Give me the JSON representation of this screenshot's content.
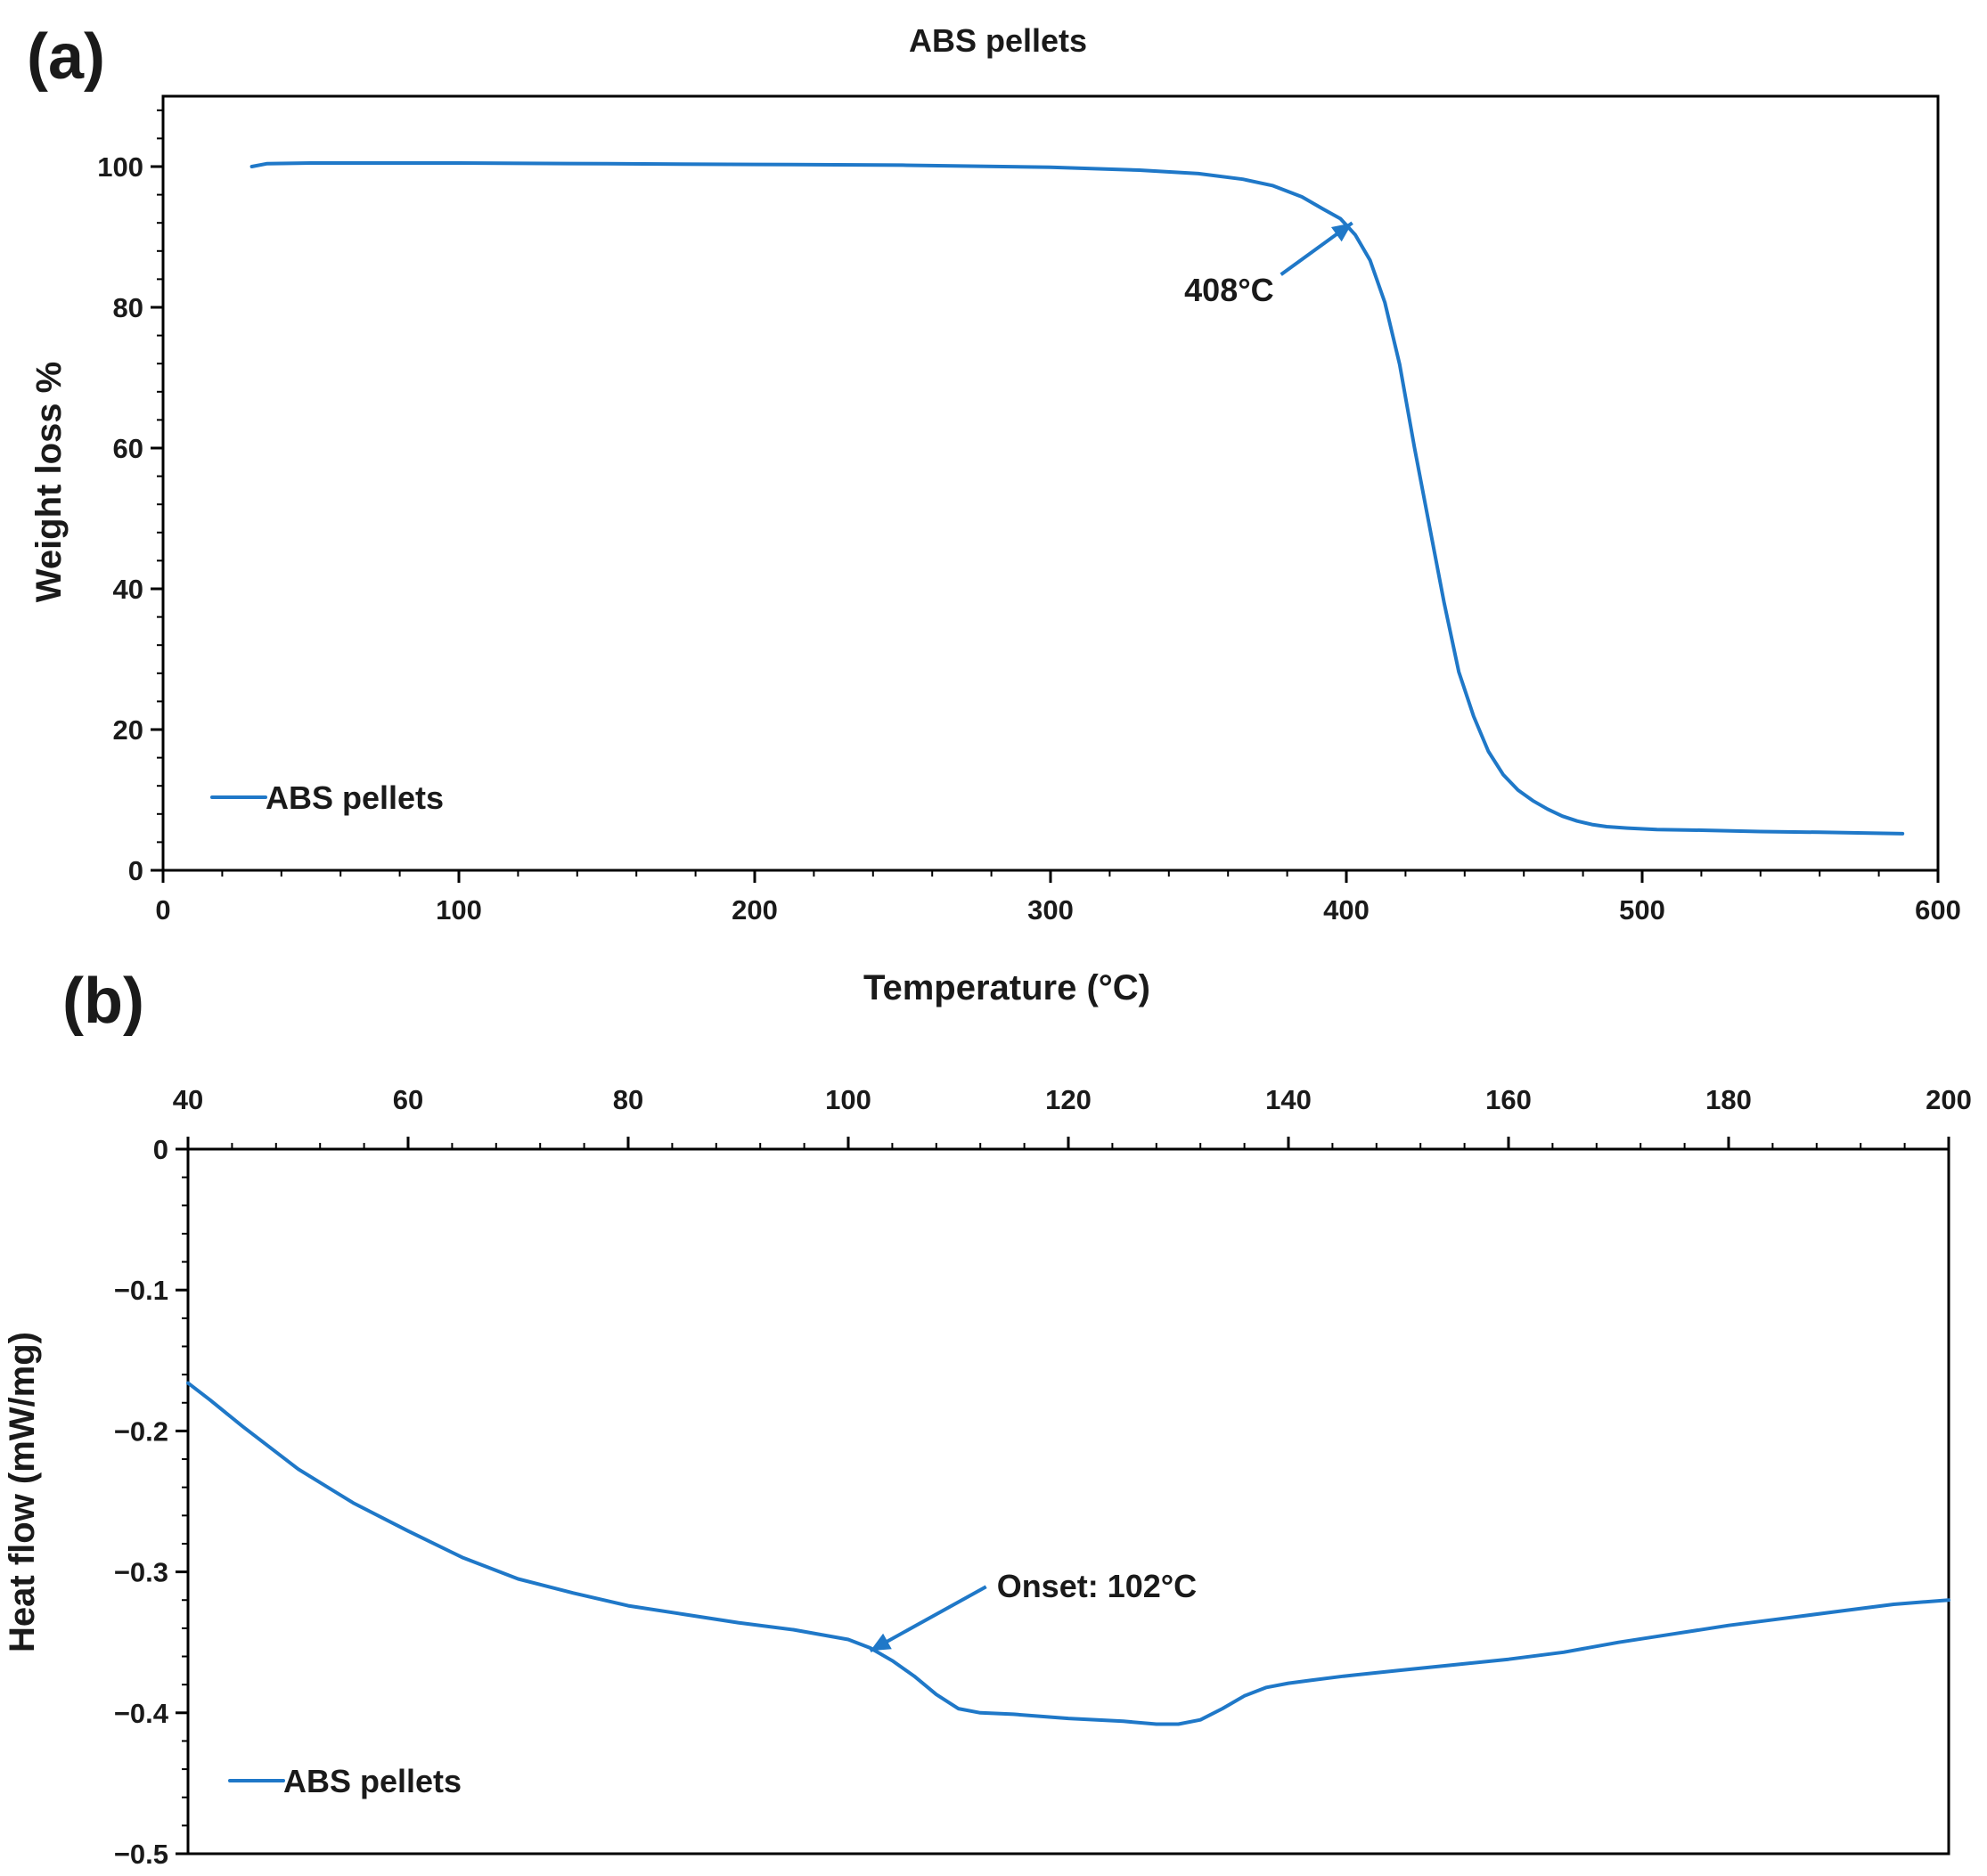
{
  "colors": {
    "series": "#1f78c8",
    "axis": "#000000",
    "text": "#1a1a1a"
  },
  "chart_data": [
    {
      "id": "a",
      "panel_label": "(a)",
      "type": "line",
      "title": "ABS pellets",
      "xlabel": "Temperature (°C)",
      "ylabel": "Weight loss %",
      "xlim": [
        0,
        600
      ],
      "ylim": [
        0,
        110
      ],
      "x_ticks": [
        0,
        100,
        200,
        300,
        400,
        500,
        600
      ],
      "y_ticks": [
        0,
        20,
        40,
        60,
        80,
        100
      ],
      "x_minor_step": 20,
      "y_minor_step": 4,
      "x_axis_position": "bottom",
      "grid": false,
      "legend": {
        "label": "ABS pellets",
        "position": "bottom-left"
      },
      "series": [
        {
          "name": "ABS pellets",
          "x": [
            30,
            35,
            50,
            100,
            150,
            200,
            250,
            300,
            330,
            350,
            365,
            375,
            385,
            392,
            398,
            403,
            408,
            413,
            418,
            423,
            428,
            433,
            438,
            443,
            448,
            453,
            458,
            463,
            468,
            473,
            478,
            483,
            488,
            495,
            505,
            520,
            540,
            560,
            575,
            588
          ],
          "y": [
            100,
            100.4,
            100.5,
            100.5,
            100.4,
            100.3,
            100.2,
            99.9,
            99.5,
            99.0,
            98.2,
            97.3,
            95.7,
            94.0,
            92.6,
            90.3,
            86.7,
            80.7,
            71.9,
            60.1,
            49.1,
            38.1,
            28.2,
            21.9,
            16.9,
            13.6,
            11.4,
            9.9,
            8.7,
            7.7,
            7.0,
            6.5,
            6.2,
            6.0,
            5.8,
            5.7,
            5.5,
            5.4,
            5.3,
            5.2
          ]
        }
      ],
      "annotations": [
        {
          "text": "408°C",
          "x": 402,
          "y": 92
        }
      ]
    },
    {
      "id": "b",
      "panel_label": "(b)",
      "type": "line",
      "title": "",
      "xlabel": "",
      "ylabel": "Heat flow (mW/mg)",
      "xlim": [
        40,
        200
      ],
      "ylim": [
        -0.5,
        0
      ],
      "x_ticks": [
        40,
        60,
        80,
        100,
        120,
        140,
        160,
        180,
        200
      ],
      "y_ticks": [
        0,
        -0.1,
        -0.2,
        -0.3,
        -0.4,
        -0.5
      ],
      "y_tick_labels": [
        "0",
        "−0.1",
        "−0.2",
        "−0.3",
        "−0.4",
        "−0.5"
      ],
      "x_minor_step": 4,
      "y_minor_step": 0.02,
      "x_axis_position": "top",
      "grid": false,
      "legend": {
        "label": "ABS pellets",
        "position": "bottom-left"
      },
      "series": [
        {
          "name": "ABS pellets",
          "x": [
            40,
            42,
            45,
            50,
            55,
            60,
            65,
            70,
            75,
            80,
            85,
            90,
            95,
            100,
            102,
            104,
            106,
            108,
            110,
            112,
            115,
            120,
            125,
            128,
            130,
            132,
            134,
            136,
            138,
            140,
            142,
            145,
            150,
            155,
            160,
            165,
            170,
            175,
            180,
            185,
            190,
            195,
            200
          ],
          "y": [
            -0.166,
            -0.178,
            -0.197,
            -0.227,
            -0.251,
            -0.271,
            -0.29,
            -0.305,
            -0.315,
            -0.324,
            -0.33,
            -0.336,
            -0.341,
            -0.348,
            -0.354,
            -0.363,
            -0.374,
            -0.387,
            -0.397,
            -0.4,
            -0.401,
            -0.404,
            -0.406,
            -0.408,
            -0.408,
            -0.405,
            -0.397,
            -0.388,
            -0.382,
            -0.379,
            -0.377,
            -0.374,
            -0.37,
            -0.366,
            -0.362,
            -0.357,
            -0.35,
            -0.344,
            -0.338,
            -0.333,
            -0.328,
            -0.323,
            -0.32
          ]
        }
      ],
      "annotations": [
        {
          "text": "Onset: 102°C",
          "x": 102,
          "y": -0.356
        }
      ]
    }
  ]
}
